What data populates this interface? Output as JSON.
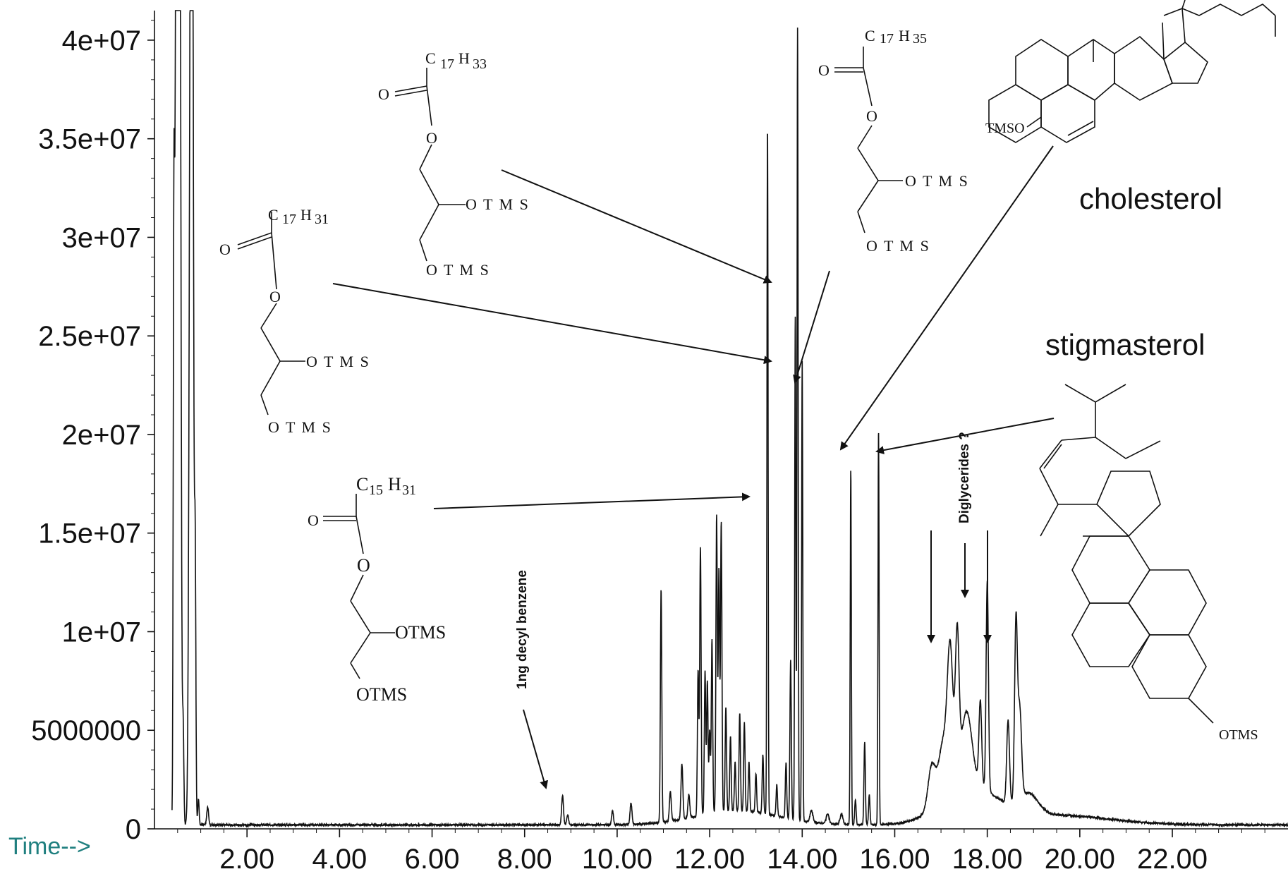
{
  "chart_data": {
    "type": "line",
    "title": "",
    "xlabel": "Time-->",
    "ylabel": "",
    "xlim": [
      0,
      24.5
    ],
    "ylim": [
      0,
      41500000
    ],
    "x_ticks": [
      2.0,
      4.0,
      6.0,
      8.0,
      10.0,
      12.0,
      14.0,
      16.0,
      18.0,
      20.0,
      22.0
    ],
    "x_tick_labels": [
      "2.00",
      "4.00",
      "6.00",
      "8.00",
      "10.00",
      "12.00",
      "14.00",
      "16.00",
      "18.00",
      "20.00",
      "22.00"
    ],
    "y_ticks": [
      0,
      5000000,
      10000000,
      15000000,
      20000000,
      25000000,
      30000000,
      35000000,
      40000000
    ],
    "y_tick_labels": [
      "0",
      "5000000",
      "1e+07",
      "1.5e+07",
      "2e+07",
      "2.5e+07",
      "3e+07",
      "3.5e+07",
      "4e+07"
    ],
    "baseline": 200000,
    "peaks": [
      {
        "x": 0.42,
        "y": 27300000,
        "w": 0.015
      },
      {
        "x": 0.48,
        "y": 41500000,
        "w": 0.03
      },
      {
        "x": 0.5,
        "y": 41500000,
        "w": 0.03
      },
      {
        "x": 0.55,
        "y": 41500000,
        "w": 0.025
      },
      {
        "x": 0.62,
        "y": 4800000,
        "w": 0.015
      },
      {
        "x": 0.78,
        "y": 41500000,
        "w": 0.03
      },
      {
        "x": 0.82,
        "y": 41500000,
        "w": 0.025
      },
      {
        "x": 0.88,
        "y": 13200000,
        "w": 0.015
      },
      {
        "x": 0.95,
        "y": 1300000,
        "w": 0.015
      },
      {
        "x": 1.15,
        "y": 900000,
        "w": 0.02
      },
      {
        "x": 8.82,
        "y": 1500000,
        "w": 0.02
      },
      {
        "x": 8.93,
        "y": 500000,
        "w": 0.02
      },
      {
        "x": 9.9,
        "y": 700000,
        "w": 0.02
      },
      {
        "x": 10.3,
        "y": 1100000,
        "w": 0.02
      },
      {
        "x": 10.95,
        "y": 11800000,
        "w": 0.015
      },
      {
        "x": 11.15,
        "y": 1500000,
        "w": 0.02
      },
      {
        "x": 11.4,
        "y": 2800000,
        "w": 0.02
      },
      {
        "x": 11.55,
        "y": 1200000,
        "w": 0.02
      },
      {
        "x": 11.75,
        "y": 7400000,
        "w": 0.015
      },
      {
        "x": 11.8,
        "y": 13600000,
        "w": 0.015
      },
      {
        "x": 11.9,
        "y": 7300000,
        "w": 0.015
      },
      {
        "x": 11.95,
        "y": 6700000,
        "w": 0.015
      },
      {
        "x": 12.0,
        "y": 4200000,
        "w": 0.015
      },
      {
        "x": 12.05,
        "y": 8800000,
        "w": 0.015
      },
      {
        "x": 12.15,
        "y": 15100000,
        "w": 0.015
      },
      {
        "x": 12.2,
        "y": 12300000,
        "w": 0.015
      },
      {
        "x": 12.25,
        "y": 14700000,
        "w": 0.015
      },
      {
        "x": 12.35,
        "y": 5300000,
        "w": 0.015
      },
      {
        "x": 12.45,
        "y": 3800000,
        "w": 0.015
      },
      {
        "x": 12.55,
        "y": 2500000,
        "w": 0.015
      },
      {
        "x": 12.65,
        "y": 5000000,
        "w": 0.015
      },
      {
        "x": 12.75,
        "y": 4500000,
        "w": 0.015
      },
      {
        "x": 12.85,
        "y": 2500000,
        "w": 0.015
      },
      {
        "x": 13.0,
        "y": 2000000,
        "w": 0.015
      },
      {
        "x": 13.15,
        "y": 3000000,
        "w": 0.015
      },
      {
        "x": 13.25,
        "y": 35000000,
        "w": 0.012
      },
      {
        "x": 13.45,
        "y": 1600000,
        "w": 0.015
      },
      {
        "x": 13.65,
        "y": 2800000,
        "w": 0.015
      },
      {
        "x": 13.75,
        "y": 8100000,
        "w": 0.015
      },
      {
        "x": 13.85,
        "y": 25600000,
        "w": 0.012
      },
      {
        "x": 13.9,
        "y": 40300000,
        "w": 0.012
      },
      {
        "x": 14.0,
        "y": 23300000,
        "w": 0.012
      },
      {
        "x": 14.2,
        "y": 600000,
        "w": 0.03
      },
      {
        "x": 14.55,
        "y": 500000,
        "w": 0.03
      },
      {
        "x": 14.85,
        "y": 500000,
        "w": 0.03
      },
      {
        "x": 15.05,
        "y": 18000000,
        "w": 0.012
      },
      {
        "x": 15.15,
        "y": 1300000,
        "w": 0.015
      },
      {
        "x": 15.35,
        "y": 4200000,
        "w": 0.015
      },
      {
        "x": 15.45,
        "y": 1500000,
        "w": 0.015
      },
      {
        "x": 15.65,
        "y": 20100000,
        "w": 0.012
      },
      {
        "x": 16.8,
        "y": 2200000,
        "w": 0.08
      },
      {
        "x": 17.05,
        "y": 3000000,
        "w": 0.1
      },
      {
        "x": 17.2,
        "y": 6800000,
        "w": 0.06
      },
      {
        "x": 17.35,
        "y": 7200000,
        "w": 0.04
      },
      {
        "x": 17.55,
        "y": 3800000,
        "w": 0.12
      },
      {
        "x": 17.85,
        "y": 4300000,
        "w": 0.03
      },
      {
        "x": 18.0,
        "y": 10700000,
        "w": 0.025
      },
      {
        "x": 18.45,
        "y": 4200000,
        "w": 0.03
      },
      {
        "x": 18.62,
        "y": 8900000,
        "w": 0.03
      },
      {
        "x": 18.7,
        "y": 4600000,
        "w": 0.04
      },
      {
        "x": 18.9,
        "y": 1000000,
        "w": 0.2
      }
    ],
    "humps": [
      {
        "x": 17.6,
        "y": 1800000,
        "w": 0.6
      },
      {
        "x": 19.4,
        "y": 500000,
        "w": 1.2
      },
      {
        "x": 12.6,
        "y": 700000,
        "w": 0.9
      }
    ],
    "annotations": {
      "decyl_benzene": "1ng decyl benzene",
      "diglycerides": "Diglycerides ?",
      "cholesterol": "cholesterol",
      "stigmasterol": "stigmasterol"
    },
    "structures": {
      "s1": {
        "chain": "C",
        "chain_sub": "17",
        "chain_h": "H",
        "chain_h_sub": "33",
        "o_carbonyl": "O",
        "o_ester": "O",
        "otms1": "O T M S",
        "otms2": "O T M S"
      },
      "s2": {
        "chain": "C",
        "chain_sub": "17",
        "chain_h": "H",
        "chain_h_sub": "35",
        "o_carbonyl": "O",
        "o_ester": "O",
        "otms1": "O T M S",
        "otms2": "O T M S"
      },
      "s3": {
        "chain": "C",
        "chain_sub": "17",
        "chain_h": "H",
        "chain_h_sub": "31",
        "o_carbonyl": "O",
        "o_ester": "O",
        "otms1": "O T M S",
        "otms2": "O T M S"
      },
      "s4": {
        "chain": "C",
        "chain_sub": "15",
        "chain_h": "H",
        "chain_h_sub": "31",
        "o_carbonyl": "O",
        "o_ester": "O",
        "otms1": "OTMS",
        "otms2": "OTMS"
      },
      "cholesterol_tms": "TMSO",
      "stigmasterol_tms": "OTMS"
    }
  }
}
